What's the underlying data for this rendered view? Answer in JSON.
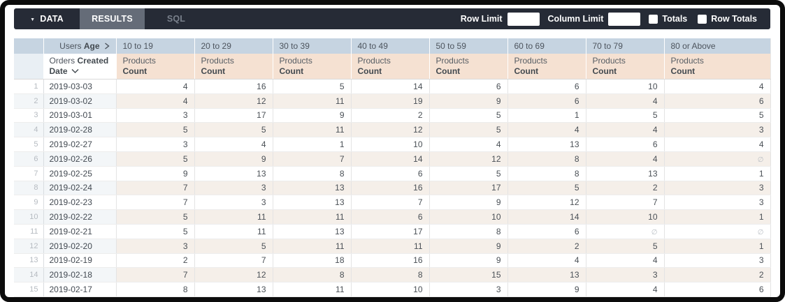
{
  "toolbar": {
    "data_tab": "DATA",
    "results_tab": "RESULTS",
    "sql_tab": "SQL",
    "row_limit_label": "Row Limit",
    "row_limit_value": "",
    "column_limit_label": "Column Limit",
    "column_limit_value": "",
    "totals_label": "Totals",
    "totals_checked": false,
    "row_totals_label": "Row Totals",
    "row_totals_checked": false
  },
  "pivot": {
    "view_label": "Users ",
    "field_label": "Age"
  },
  "row_dimension": {
    "view_label": "Orders ",
    "field_word1": "Created",
    "field_word2": "Date"
  },
  "measure": {
    "view_label": "Products",
    "field_label": "Count"
  },
  "null_symbol": "∅",
  "columns": [
    "10 to 19",
    "20 to 29",
    "30 to 39",
    "40 to 49",
    "50 to 59",
    "60 to 69",
    "70 to 79",
    "80 or Above"
  ],
  "rows": [
    {
      "n": 1,
      "date": "2019-03-03",
      "values": [
        4,
        16,
        5,
        14,
        6,
        6,
        10,
        4
      ]
    },
    {
      "n": 2,
      "date": "2019-03-02",
      "values": [
        4,
        12,
        11,
        19,
        9,
        6,
        4,
        6
      ]
    },
    {
      "n": 3,
      "date": "2019-03-01",
      "values": [
        3,
        17,
        9,
        2,
        5,
        1,
        5,
        5
      ]
    },
    {
      "n": 4,
      "date": "2019-02-28",
      "values": [
        5,
        5,
        11,
        12,
        5,
        4,
        4,
        3
      ]
    },
    {
      "n": 5,
      "date": "2019-02-27",
      "values": [
        3,
        4,
        1,
        10,
        4,
        13,
        6,
        4
      ]
    },
    {
      "n": 6,
      "date": "2019-02-26",
      "values": [
        5,
        9,
        7,
        14,
        12,
        8,
        4,
        null
      ]
    },
    {
      "n": 7,
      "date": "2019-02-25",
      "values": [
        9,
        13,
        8,
        6,
        5,
        8,
        13,
        1
      ]
    },
    {
      "n": 8,
      "date": "2019-02-24",
      "values": [
        7,
        3,
        13,
        16,
        17,
        5,
        2,
        3
      ]
    },
    {
      "n": 9,
      "date": "2019-02-23",
      "values": [
        7,
        3,
        13,
        7,
        9,
        12,
        7,
        3
      ]
    },
    {
      "n": 10,
      "date": "2019-02-22",
      "values": [
        5,
        11,
        11,
        6,
        10,
        14,
        10,
        1
      ]
    },
    {
      "n": 11,
      "date": "2019-02-21",
      "values": [
        5,
        11,
        13,
        17,
        8,
        6,
        null,
        null
      ]
    },
    {
      "n": 12,
      "date": "2019-02-20",
      "values": [
        3,
        5,
        11,
        11,
        9,
        2,
        5,
        1
      ]
    },
    {
      "n": 13,
      "date": "2019-02-19",
      "values": [
        2,
        7,
        18,
        16,
        9,
        4,
        4,
        3
      ]
    },
    {
      "n": 14,
      "date": "2019-02-18",
      "values": [
        7,
        12,
        8,
        8,
        15,
        13,
        3,
        2
      ]
    },
    {
      "n": 15,
      "date": "2019-02-17",
      "values": [
        8,
        13,
        11,
        10,
        3,
        9,
        4,
        6
      ]
    }
  ],
  "colors": {
    "topbar_bg": "#262b36",
    "results_tab_bg": "#656c78",
    "pivot_header_bg": "#c6d4e1",
    "measure_header_bg": "#f5e1d2",
    "even_row_dim_bg": "#f3f6f8",
    "even_row_measure_bg": "#f5efe9"
  }
}
